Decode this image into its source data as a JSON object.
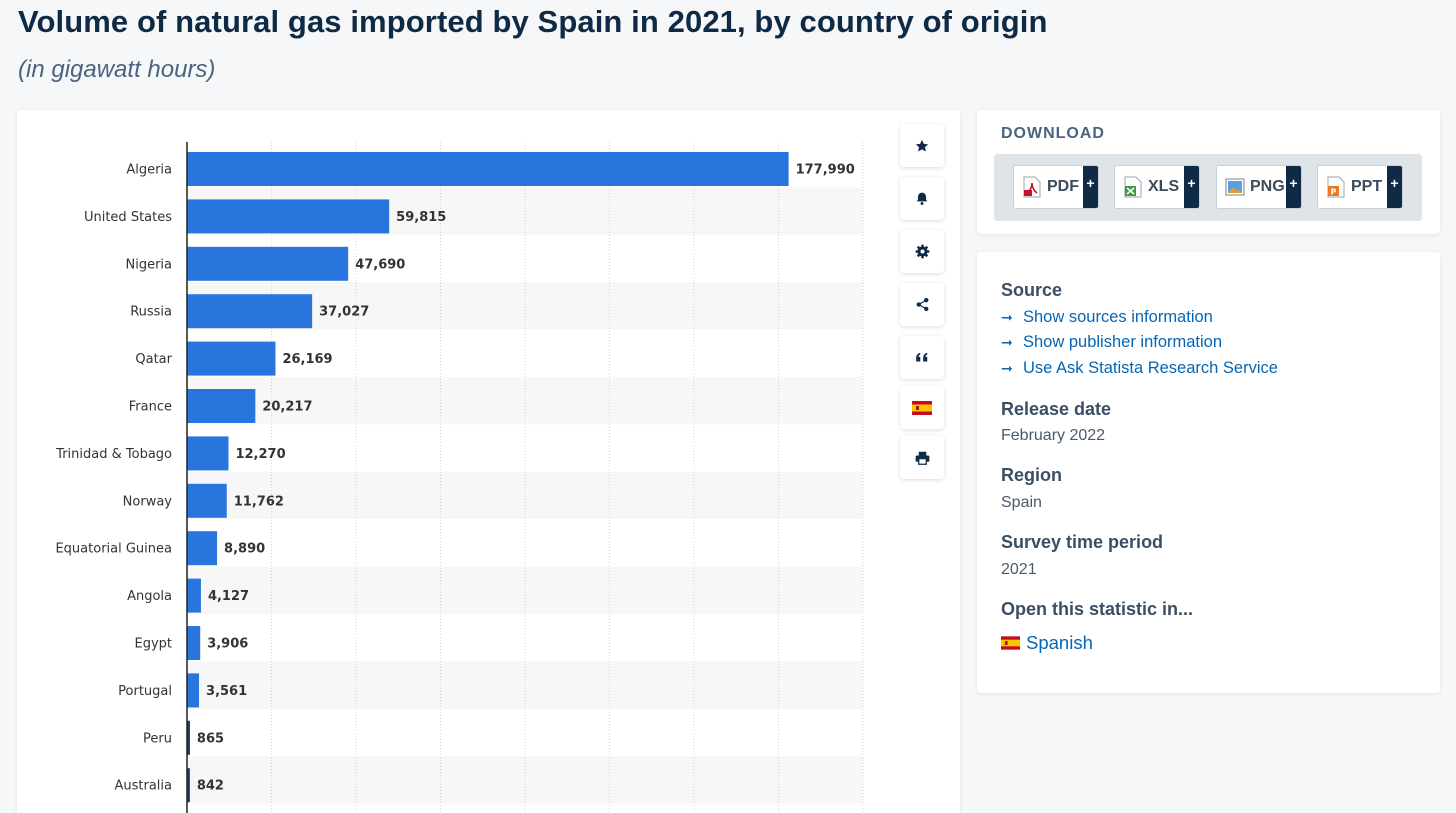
{
  "header": {
    "title": "Volume of natural gas imported by Spain in 2021, by country of origin",
    "subtitle": "(in gigawatt hours)"
  },
  "chart_data": {
    "type": "bar",
    "orientation": "horizontal",
    "title": "Volume of natural gas imported by Spain in 2021, by country of origin",
    "subtitle": "(in gigawatt hours)",
    "categories": [
      "Algeria",
      "United States",
      "Nigeria",
      "Russia",
      "Qatar",
      "France",
      "Trinidad & Tobago",
      "Norway",
      "Equatorial Guinea",
      "Angola",
      "Egypt",
      "Portugal",
      "Peru",
      "Australia"
    ],
    "values": [
      177990,
      59815,
      47690,
      37027,
      26169,
      20217,
      12270,
      11762,
      8890,
      4127,
      3906,
      3561,
      865,
      842
    ],
    "value_labels": [
      "177,990",
      "59,815",
      "47,690",
      "37,027",
      "26,169",
      "20,217",
      "12,270",
      "11,762",
      "8,890",
      "4,127",
      "3,906",
      "3,561",
      "865",
      "842"
    ],
    "xlim": [
      0,
      200000
    ],
    "gridlines_every": 25000,
    "grid": true,
    "bar_color": "#2876dd",
    "small_bar_color": "#143a66",
    "xlabel": "",
    "ylabel": ""
  },
  "toolbar": {
    "buttons": [
      {
        "name": "favorite-button",
        "icon": "star-icon"
      },
      {
        "name": "notification-button",
        "icon": "bell-icon"
      },
      {
        "name": "settings-button",
        "icon": "gear-icon"
      },
      {
        "name": "share-button",
        "icon": "share-icon"
      },
      {
        "name": "cite-button",
        "icon": "quote-icon"
      },
      {
        "name": "language-button",
        "icon": "spain-flag-icon"
      },
      {
        "name": "print-button",
        "icon": "printer-icon"
      }
    ]
  },
  "download": {
    "title": "DOWNLOAD",
    "buttons": [
      {
        "label": "PDF",
        "icon": "pdf-file-icon",
        "plus": "+"
      },
      {
        "label": "XLS",
        "icon": "xls-file-icon",
        "plus": "+"
      },
      {
        "label": "PNG",
        "icon": "png-file-icon",
        "plus": "+"
      },
      {
        "label": "PPT",
        "icon": "ppt-file-icon",
        "plus": "+"
      }
    ]
  },
  "info": {
    "source_heading": "Source",
    "source_links": [
      "Show sources information",
      "Show publisher information",
      "Use Ask Statista Research Service"
    ],
    "release_heading": "Release date",
    "release_value": "February 2022",
    "region_heading": "Region",
    "region_value": "Spain",
    "period_heading": "Survey time period",
    "period_value": "2021",
    "open_heading": "Open this statistic in...",
    "open_language": "Spanish"
  },
  "colors": {
    "accent": "#0666b4",
    "title": "#0f2a45",
    "bar": "#2876dd"
  }
}
